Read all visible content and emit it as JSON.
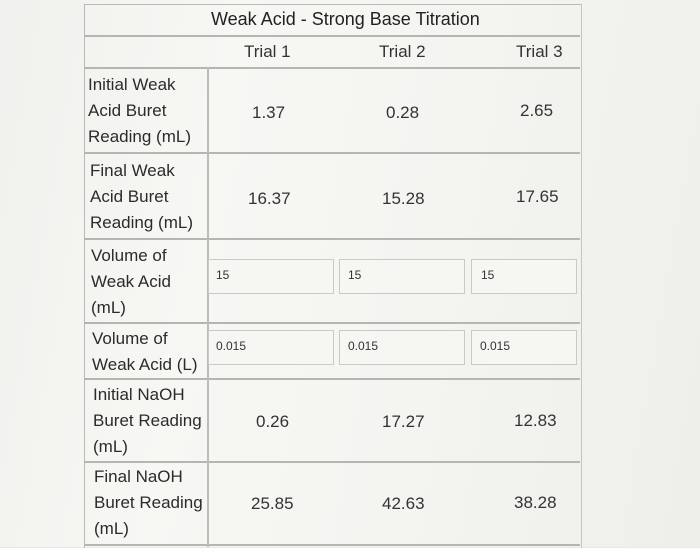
{
  "table": {
    "title": "Weak Acid - Strong Base Titration",
    "headers": [
      "Trial 1",
      "Trial 2",
      "Trial 3"
    ],
    "rows": [
      {
        "label_lines": [
          "Initial Weak",
          "Acid Buret",
          "Reading (mL)"
        ],
        "values": [
          "1.37",
          "0.28",
          "2.65"
        ]
      },
      {
        "label_lines": [
          "Final Weak",
          "Acid Buret",
          "Reading (mL)"
        ],
        "values": [
          "16.37",
          "15.28",
          "17.65"
        ]
      },
      {
        "label_lines": [
          "Volume of",
          "Weak Acid",
          "(mL)"
        ],
        "values": [
          "15",
          "15",
          "15"
        ]
      },
      {
        "label_lines": [
          "Volume of",
          "Weak Acid (L)"
        ],
        "values": [
          "0.015",
          "0.015",
          "0.015"
        ]
      },
      {
        "label_lines": [
          "Initial NaOH",
          "Buret Reading",
          "(mL)"
        ],
        "values": [
          "0.26",
          "17.27",
          "12.83"
        ]
      },
      {
        "label_lines": [
          "Final NaOH",
          "Buret Reading",
          "(mL)"
        ],
        "values": [
          "25.85",
          "42.63",
          "38.28"
        ]
      }
    ]
  }
}
